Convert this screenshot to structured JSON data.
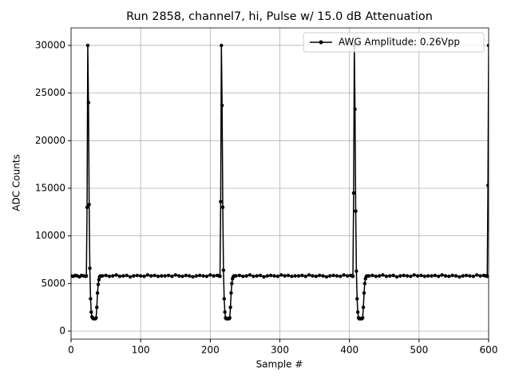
{
  "chart_data": {
    "type": "line",
    "title": "Run 2858, channel7, hi, Pulse w/ 15.0 dB Attenuation",
    "x_label": "Sample #",
    "y_label": "ADC Counts",
    "xlim": [
      0,
      600
    ],
    "ylim": [
      -840,
      31840
    ],
    "xticks": [
      0,
      100,
      200,
      300,
      400,
      500,
      600
    ],
    "yticks": [
      0,
      5000,
      10000,
      15000,
      20000,
      25000,
      30000
    ],
    "grid": true,
    "legend": "upper right",
    "x": [
      0,
      3,
      6,
      9,
      12,
      15,
      18,
      21,
      22,
      23,
      24,
      25,
      26,
      27,
      28,
      29,
      30,
      31,
      32,
      33,
      34,
      35,
      36,
      37,
      38,
      39,
      40,
      41,
      42,
      45,
      50,
      55,
      60,
      65,
      70,
      75,
      80,
      85,
      90,
      95,
      100,
      105,
      110,
      115,
      120,
      125,
      130,
      135,
      140,
      145,
      150,
      155,
      160,
      165,
      170,
      175,
      180,
      185,
      190,
      195,
      200,
      205,
      210,
      213,
      214,
      215,
      216,
      217,
      218,
      219,
      220,
      221,
      222,
      223,
      224,
      225,
      226,
      227,
      228,
      229,
      230,
      231,
      232,
      233,
      234,
      237,
      242,
      247,
      252,
      257,
      262,
      267,
      272,
      277,
      282,
      287,
      292,
      297,
      302,
      307,
      312,
      317,
      322,
      327,
      332,
      337,
      342,
      347,
      352,
      357,
      362,
      367,
      372,
      377,
      382,
      387,
      392,
      397,
      402,
      404,
      405,
      406,
      407,
      408,
      409,
      410,
      411,
      412,
      413,
      414,
      415,
      416,
      417,
      418,
      419,
      420,
      421,
      422,
      423,
      424,
      425,
      428,
      433,
      438,
      443,
      448,
      453,
      458,
      463,
      468,
      473,
      478,
      483,
      488,
      493,
      498,
      503,
      508,
      513,
      518,
      523,
      528,
      533,
      538,
      543,
      548,
      553,
      558,
      563,
      568,
      573,
      578,
      583,
      588,
      593,
      596,
      598,
      599,
      600
    ],
    "series": [
      {
        "name": "AWG Amplitude: 0.26Vpp",
        "color": "#000000",
        "values": [
          5800,
          5750,
          5850,
          5800,
          5700,
          5850,
          5800,
          5750,
          5800,
          13000,
          30000,
          24000,
          13300,
          6600,
          3400,
          2000,
          1500,
          1400,
          1300,
          1300,
          1300,
          1300,
          1400,
          2500,
          4000,
          4900,
          5400,
          5700,
          5800,
          5800,
          5850,
          5750,
          5800,
          5900,
          5750,
          5800,
          5850,
          5700,
          5800,
          5850,
          5800,
          5750,
          5900,
          5800,
          5850,
          5750,
          5800,
          5800,
          5850,
          5750,
          5900,
          5800,
          5750,
          5850,
          5800,
          5700,
          5800,
          5850,
          5800,
          5750,
          5900,
          5800,
          5850,
          5800,
          5750,
          13600,
          30000,
          23700,
          13000,
          6400,
          3400,
          2000,
          1400,
          1300,
          1300,
          1300,
          1300,
          1300,
          1400,
          2500,
          4000,
          5000,
          5500,
          5700,
          5800,
          5800,
          5850,
          5750,
          5800,
          5900,
          5750,
          5800,
          5850,
          5700,
          5800,
          5850,
          5800,
          5750,
          5900,
          5800,
          5850,
          5750,
          5800,
          5800,
          5850,
          5750,
          5900,
          5800,
          5750,
          5850,
          5800,
          5700,
          5800,
          5850,
          5800,
          5750,
          5900,
          5800,
          5850,
          5800,
          5750,
          14500,
          30000,
          23300,
          12600,
          6300,
          3400,
          2000,
          1400,
          1300,
          1300,
          1300,
          1300,
          1300,
          1400,
          2500,
          4000,
          5000,
          5500,
          5700,
          5800,
          5800,
          5850,
          5750,
          5800,
          5900,
          5750,
          5800,
          5850,
          5700,
          5800,
          5850,
          5800,
          5750,
          5900,
          5800,
          5850,
          5750,
          5800,
          5800,
          5850,
          5750,
          5900,
          5800,
          5750,
          5850,
          5800,
          5700,
          5800,
          5850,
          5800,
          5750,
          5900,
          5800,
          5850,
          5800,
          5750,
          15300,
          30000
        ]
      }
    ]
  }
}
